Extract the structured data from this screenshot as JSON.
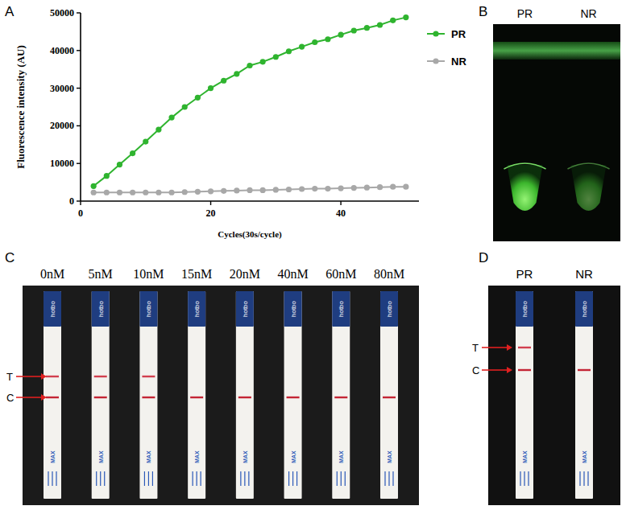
{
  "chart_data": {
    "type": "line",
    "x_label": "Cycles(30s/cycle)",
    "y_label": "Fluorescence intensity (AU)",
    "x": [
      2,
      4,
      6,
      8,
      10,
      12,
      14,
      16,
      18,
      20,
      22,
      24,
      26,
      28,
      30,
      32,
      34,
      36,
      38,
      40,
      42,
      44,
      46,
      48,
      50
    ],
    "series": [
      {
        "name": "PR",
        "color": "#2fb42f",
        "marker": "circle",
        "values": [
          4000,
          6700,
          9700,
          12700,
          15800,
          19000,
          22200,
          25000,
          27500,
          30000,
          32000,
          33800,
          36000,
          37000,
          38300,
          39800,
          41000,
          42200,
          43000,
          44200,
          45300,
          46000,
          46800,
          48000,
          48800
        ]
      },
      {
        "name": "NR",
        "color": "#a8a8a8",
        "marker": "circle",
        "values": [
          2300,
          2300,
          2300,
          2300,
          2300,
          2300,
          2300,
          2400,
          2500,
          2600,
          2700,
          2800,
          2900,
          2900,
          3000,
          3100,
          3200,
          3300,
          3300,
          3400,
          3500,
          3600,
          3700,
          3800,
          3800
        ]
      }
    ],
    "xlim": [
      0,
      52
    ],
    "xticks": [
      0,
      20,
      40
    ],
    "ylim": [
      0,
      50000
    ],
    "yticks": [
      0,
      10000,
      20000,
      30000,
      40000,
      50000
    ],
    "grid": false,
    "legend": "right"
  },
  "panel_labels": [
    "A",
    "B",
    "C",
    "D"
  ],
  "panel_b": {
    "tubes": [
      "PR",
      "NR"
    ]
  },
  "panel_c": {
    "strips": [
      "0nM",
      "5nM",
      "10nM",
      "15nM",
      "20nM",
      "40nM",
      "60nM",
      "80nM"
    ],
    "t_line": [
      true,
      true,
      true,
      false,
      false,
      false,
      false,
      false
    ],
    "c_line": [
      true,
      true,
      true,
      true,
      true,
      true,
      true,
      true
    ],
    "t_label": "T",
    "c_label": "C"
  },
  "panel_d": {
    "strips": [
      "PR",
      "NR"
    ],
    "t_line": [
      true,
      false
    ],
    "c_line": [
      true,
      true
    ],
    "t_label": "T",
    "c_label": "C"
  },
  "strip_text": {
    "brand": "hotbo",
    "max": "MAX"
  }
}
